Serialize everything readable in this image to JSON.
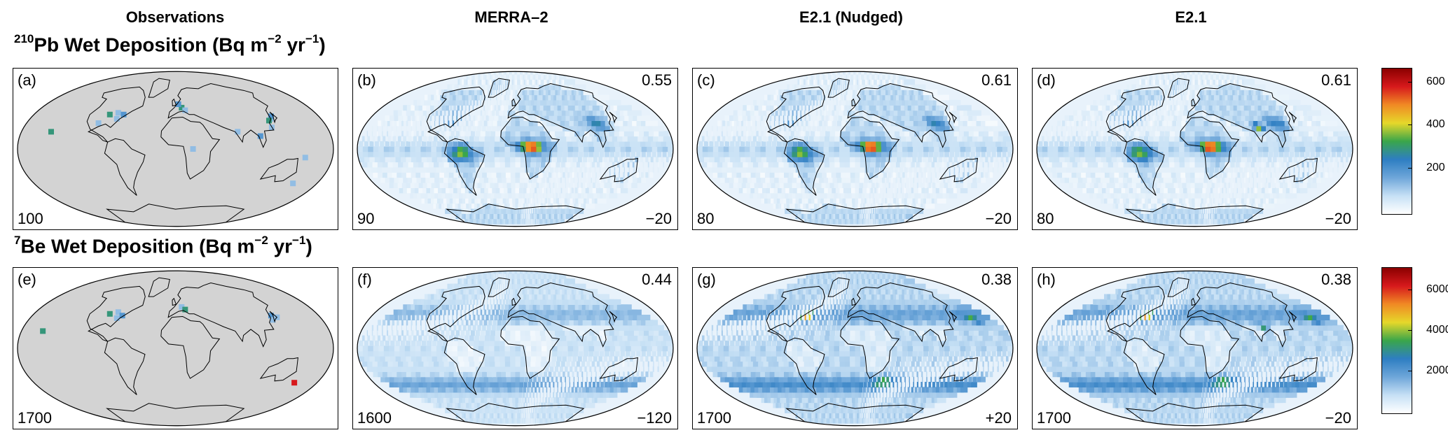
{
  "columns": [
    "Observations",
    "MERRA–2",
    "E2.1 (Nudged)",
    "E2.1"
  ],
  "rows": [
    {
      "title_sup": "210",
      "title_main": "Pb Wet Deposition (Bq m",
      "title_exp1": "−2",
      "title_mid": " yr",
      "title_exp2": "−1",
      "title_end": ")",
      "panels": [
        {
          "label": "(a)",
          "corr": "",
          "mean": "100",
          "bias": ""
        },
        {
          "label": "(b)",
          "corr": "0.55",
          "mean": "90",
          "bias": "−20"
        },
        {
          "label": "(c)",
          "corr": "0.61",
          "mean": "80",
          "bias": "−20"
        },
        {
          "label": "(d)",
          "corr": "0.61",
          "mean": "80",
          "bias": "−20"
        }
      ],
      "colorbar_ticks": [
        "600",
        "400",
        "200"
      ],
      "colorbar_max": 680
    },
    {
      "title_sup": "7",
      "title_main": "Be Wet Deposition (Bq m",
      "title_exp1": "−2",
      "title_mid": " yr",
      "title_exp2": "−1",
      "title_end": ")",
      "panels": [
        {
          "label": "(e)",
          "corr": "",
          "mean": "1700",
          "bias": ""
        },
        {
          "label": "(f)",
          "corr": "0.44",
          "mean": "1600",
          "bias": "−120"
        },
        {
          "label": "(g)",
          "corr": "0.38",
          "mean": "1700",
          "bias": "+20"
        },
        {
          "label": "(h)",
          "corr": "0.38",
          "mean": "1700",
          "bias": "−20"
        }
      ],
      "colorbar_ticks": [
        "6000",
        "4000",
        "2000"
      ],
      "colorbar_max": 7200
    }
  ],
  "colors": {
    "land_grey": "#d3d3d3",
    "ocean_light": "#e8f2fb",
    "cmap": [
      "#ffffff",
      "#c6e0f5",
      "#6ea6d9",
      "#2e7ec2",
      "#3aa64a",
      "#e6d82a",
      "#f08a24",
      "#d7191c",
      "#8b0000"
    ]
  }
}
